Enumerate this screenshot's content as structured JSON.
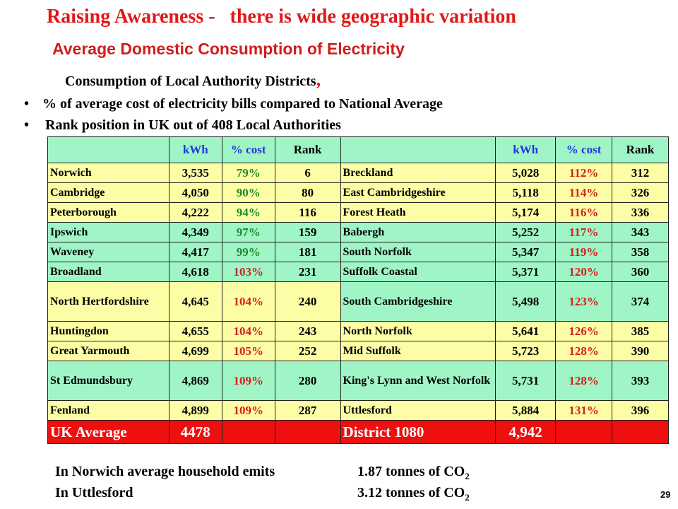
{
  "title": "Raising Awareness -   there is wide geographic variation",
  "subtitle": "Average Domestic Consumption of Electricity",
  "intro": "Consumption of Local Authority Districts",
  "intro_comma": ",",
  "bullets": [
    "% of average cost of electricity bills compared to National Average",
    "Rank position in UK out of 408 Local Authorities"
  ],
  "table": {
    "headers": {
      "kwh": "kWh",
      "cost": "% cost",
      "rank": "Rank"
    },
    "left": [
      {
        "name": "Norwich",
        "kwh": "3,535",
        "cost": "79%",
        "rank": "6"
      },
      {
        "name": "Cambridge",
        "kwh": "4,050",
        "cost": "90%",
        "rank": "80"
      },
      {
        "name": "Peterborough",
        "kwh": "4,222",
        "cost": "94%",
        "rank": "116"
      },
      {
        "name": "Ipswich",
        "kwh": "4,349",
        "cost": "97%",
        "rank": "159"
      },
      {
        "name": "Waveney",
        "kwh": "4,417",
        "cost": "99%",
        "rank": "181"
      },
      {
        "name": "Broadland",
        "kwh": "4,618",
        "cost": "103%",
        "rank": "231"
      },
      {
        "name": "North Hertfordshire",
        "kwh": "4,645",
        "cost": "104%",
        "rank": "240"
      },
      {
        "name": "Huntingdon",
        "kwh": "4,655",
        "cost": "104%",
        "rank": "243"
      },
      {
        "name": "Great Yarmouth",
        "kwh": "4,699",
        "cost": "105%",
        "rank": "252"
      },
      {
        "name": "St Edmundsbury",
        "kwh": "4,869",
        "cost": "109%",
        "rank": "280"
      },
      {
        "name": "Fenland",
        "kwh": "4,899",
        "cost": "109%",
        "rank": "287"
      }
    ],
    "right": [
      {
        "name": "Breckland",
        "kwh": "5,028",
        "cost": "112%",
        "rank": "312"
      },
      {
        "name": "East Cambridgeshire",
        "kwh": "5,118",
        "cost": "114%",
        "rank": "326"
      },
      {
        "name": "Forest Heath",
        "kwh": "5,174",
        "cost": "116%",
        "rank": "336"
      },
      {
        "name": "Babergh",
        "kwh": "5,252",
        "cost": "117%",
        "rank": "343"
      },
      {
        "name": "South Norfolk",
        "kwh": "5,347",
        "cost": "119%",
        "rank": "358"
      },
      {
        "name": "Suffolk Coastal",
        "kwh": "5,371",
        "cost": "120%",
        "rank": "360"
      },
      {
        "name": "South Cambridgeshire",
        "kwh": "5,498",
        "cost": "123%",
        "rank": "374"
      },
      {
        "name": "North Norfolk",
        "kwh": "5,641",
        "cost": "126%",
        "rank": "385"
      },
      {
        "name": "Mid Suffolk",
        "kwh": "5,723",
        "cost": "128%",
        "rank": "390"
      },
      {
        "name": "King's Lynn and West Norfolk",
        "kwh": "5,731",
        "cost": "128%",
        "rank": "393"
      },
      {
        "name": "Uttlesford",
        "kwh": "5,884",
        "cost": "131%",
        "rank": "396"
      }
    ],
    "footer": {
      "uk_label": "UK Average",
      "uk_value": "4478",
      "district_label": "District 1080",
      "district_value": "4,942"
    }
  },
  "notes": [
    {
      "label": "In Norwich average household emits",
      "value": "1.87 tonnes of CO",
      "sub": "2"
    },
    {
      "label": "In Uttlesford",
      "value": "3.12 tonnes of CO",
      "sub": "2"
    }
  ],
  "page_number": "29",
  "colors": {
    "title": "#e01818",
    "subtitle": "#d21c1c",
    "green_fill": "#9ff5c6",
    "yellow_fill": "#fdfda6",
    "footer_fill": "#ee0f0f"
  }
}
